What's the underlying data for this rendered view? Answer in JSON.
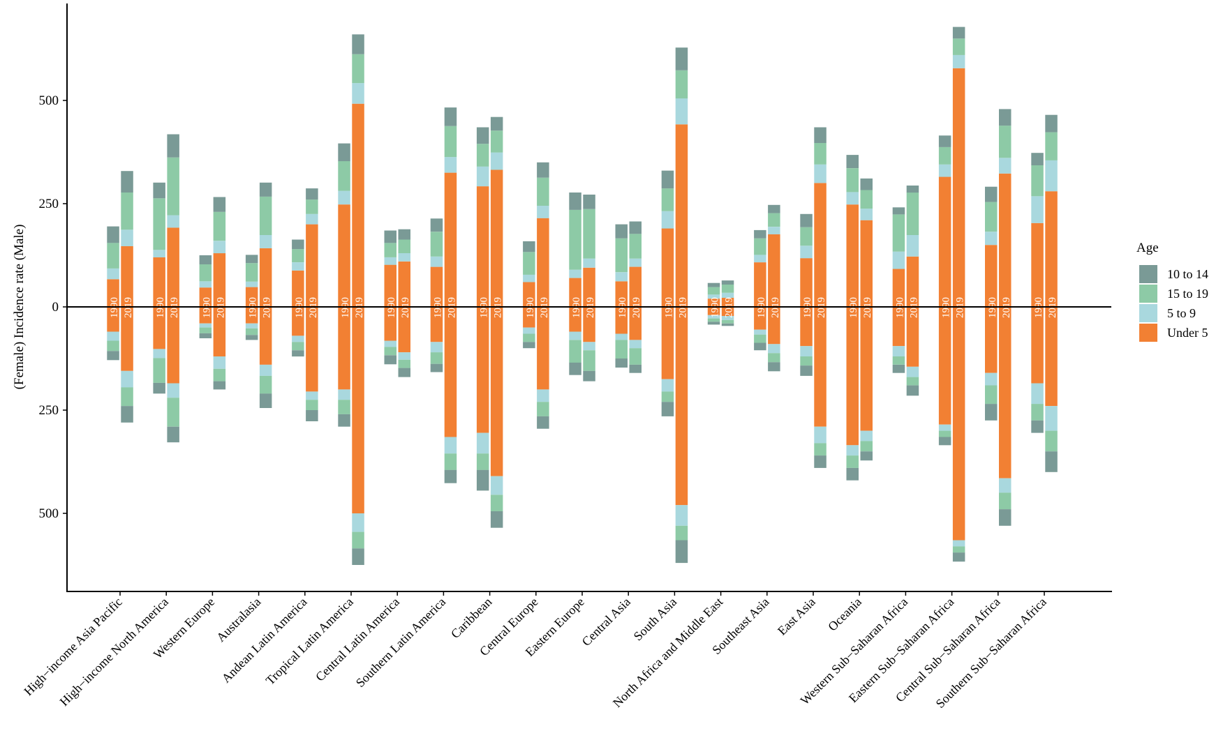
{
  "chart_data": {
    "type": "bar",
    "subtype": "diverging-stacked",
    "title": "",
    "xlabel": "",
    "ylabel": "(Female) Incidence rate (Male)",
    "ylim": [
      -650,
      740
    ],
    "yticks": [
      {
        "value": 500,
        "label": "500"
      },
      {
        "value": 250,
        "label": "250"
      },
      {
        "value": 0,
        "label": "0"
      },
      {
        "value": -250,
        "label": "250"
      },
      {
        "value": -500,
        "label": "500"
      }
    ],
    "bar_labels": [
      "1990",
      "2019"
    ],
    "stack_order": [
      "Under 5",
      "5 to 9",
      "15 to 19",
      "10 to 14"
    ],
    "legend": {
      "title": "Age",
      "position": "right",
      "entries": [
        {
          "label": "10 to 14",
          "color": "#7a9a96"
        },
        {
          "label": "15 to 19",
          "color": "#8dcaa6"
        },
        {
          "label": "5 to 9",
          "color": "#a9d8de"
        },
        {
          "label": "Under 5",
          "color": "#f28033"
        }
      ]
    },
    "regions": [
      {
        "name": "High−income Asia Pacific",
        "bars": [
          {
            "year": "1990",
            "male": {
              "Under 5": 67,
              "5 to 9": 26,
              "15 to 19": 62,
              "10 to 14": 40
            },
            "female": {
              "Under 5": 60,
              "5 to 9": 22,
              "15 to 19": 25,
              "10 to 14": 22
            }
          },
          {
            "year": "2019",
            "male": {
              "Under 5": 147,
              "5 to 9": 40,
              "15 to 19": 90,
              "10 to 14": 52
            },
            "female": {
              "Under 5": 155,
              "5 to 9": 40,
              "15 to 19": 45,
              "10 to 14": 40
            }
          }
        ]
      },
      {
        "name": "High−income North America",
        "bars": [
          {
            "year": "1990",
            "male": {
              "Under 5": 120,
              "5 to 9": 18,
              "15 to 19": 125,
              "10 to 14": 38
            },
            "female": {
              "Under 5": 102,
              "5 to 9": 22,
              "15 to 19": 60,
              "10 to 14": 26
            }
          },
          {
            "year": "2019",
            "male": {
              "Under 5": 192,
              "5 to 9": 30,
              "15 to 19": 140,
              "10 to 14": 56
            },
            "female": {
              "Under 5": 185,
              "5 to 9": 35,
              "15 to 19": 70,
              "10 to 14": 38
            }
          }
        ]
      },
      {
        "name": "Western Europe",
        "bars": [
          {
            "year": "1990",
            "male": {
              "Under 5": 47,
              "5 to 9": 15,
              "15 to 19": 41,
              "10 to 14": 22
            },
            "female": {
              "Under 5": 40,
              "5 to 9": 10,
              "15 to 19": 14,
              "10 to 14": 12
            }
          },
          {
            "year": "2019",
            "male": {
              "Under 5": 130,
              "5 to 9": 30,
              "15 to 19": 70,
              "10 to 14": 36
            },
            "female": {
              "Under 5": 120,
              "5 to 9": 30,
              "15 to 19": 30,
              "10 to 14": 20
            }
          }
        ]
      },
      {
        "name": "Australasia",
        "bars": [
          {
            "year": "1990",
            "male": {
              "Under 5": 48,
              "5 to 9": 13,
              "15 to 19": 45,
              "10 to 14": 20
            },
            "female": {
              "Under 5": 40,
              "5 to 9": 12,
              "15 to 19": 16,
              "10 to 14": 12
            }
          },
          {
            "year": "2019",
            "male": {
              "Under 5": 142,
              "5 to 9": 32,
              "15 to 19": 93,
              "10 to 14": 34
            },
            "female": {
              "Under 5": 140,
              "5 to 9": 27,
              "15 to 19": 43,
              "10 to 14": 35
            }
          }
        ]
      },
      {
        "name": "Andean Latin America",
        "bars": [
          {
            "year": "1990",
            "male": {
              "Under 5": 88,
              "5 to 9": 20,
              "15 to 19": 32,
              "10 to 14": 23
            },
            "female": {
              "Under 5": 70,
              "5 to 9": 15,
              "15 to 19": 20,
              "10 to 14": 15
            }
          },
          {
            "year": "2019",
            "male": {
              "Under 5": 200,
              "5 to 9": 25,
              "15 to 19": 35,
              "10 to 14": 27
            },
            "female": {
              "Under 5": 205,
              "5 to 9": 20,
              "15 to 19": 25,
              "10 to 14": 27
            }
          }
        ]
      },
      {
        "name": "Tropical Latin America",
        "bars": [
          {
            "year": "1990",
            "male": {
              "Under 5": 248,
              "5 to 9": 33,
              "15 to 19": 72,
              "10 to 14": 43
            },
            "female": {
              "Under 5": 200,
              "5 to 9": 25,
              "15 to 19": 35,
              "10 to 14": 30
            }
          },
          {
            "year": "2019",
            "male": {
              "Under 5": 492,
              "5 to 9": 50,
              "15 to 19": 70,
              "10 to 14": 48
            },
            "female": {
              "Under 5": 500,
              "5 to 9": 45,
              "15 to 19": 40,
              "10 to 14": 40
            }
          }
        ]
      },
      {
        "name": "Central Latin America",
        "bars": [
          {
            "year": "1990",
            "male": {
              "Under 5": 102,
              "5 to 9": 18,
              "15 to 19": 35,
              "10 to 14": 30
            },
            "female": {
              "Under 5": 82,
              "5 to 9": 15,
              "15 to 19": 20,
              "10 to 14": 22
            }
          },
          {
            "year": "2019",
            "male": {
              "Under 5": 110,
              "5 to 9": 20,
              "15 to 19": 33,
              "10 to 14": 25
            },
            "female": {
              "Under 5": 110,
              "5 to 9": 18,
              "15 to 19": 20,
              "10 to 14": 22
            }
          }
        ]
      },
      {
        "name": "Southern Latin America",
        "bars": [
          {
            "year": "1990",
            "male": {
              "Under 5": 97,
              "5 to 9": 25,
              "15 to 19": 60,
              "10 to 14": 32
            },
            "female": {
              "Under 5": 85,
              "5 to 9": 25,
              "15 to 19": 28,
              "10 to 14": 20
            }
          },
          {
            "year": "2019",
            "male": {
              "Under 5": 325,
              "5 to 9": 38,
              "15 to 19": 75,
              "10 to 14": 45
            },
            "female": {
              "Under 5": 315,
              "5 to 9": 40,
              "15 to 19": 40,
              "10 to 14": 32
            }
          }
        ]
      },
      {
        "name": "Caribbean",
        "bars": [
          {
            "year": "1990",
            "male": {
              "Under 5": 292,
              "5 to 9": 48,
              "15 to 19": 55,
              "10 to 14": 40
            },
            "female": {
              "Under 5": 305,
              "5 to 9": 50,
              "15 to 19": 40,
              "10 to 14": 50
            }
          },
          {
            "year": "2019",
            "male": {
              "Under 5": 332,
              "5 to 9": 42,
              "15 to 19": 53,
              "10 to 14": 33
            },
            "female": {
              "Under 5": 410,
              "5 to 9": 45,
              "15 to 19": 40,
              "10 to 14": 40
            }
          }
        ]
      },
      {
        "name": "Central Europe",
        "bars": [
          {
            "year": "1990",
            "male": {
              "Under 5": 60,
              "5 to 9": 18,
              "15 to 19": 55,
              "10 to 14": 26
            },
            "female": {
              "Under 5": 50,
              "5 to 9": 15,
              "15 to 19": 20,
              "10 to 14": 15
            }
          },
          {
            "year": "2019",
            "male": {
              "Under 5": 215,
              "5 to 9": 30,
              "15 to 19": 68,
              "10 to 14": 37
            },
            "female": {
              "Under 5": 200,
              "5 to 9": 30,
              "15 to 19": 35,
              "10 to 14": 30
            }
          }
        ]
      },
      {
        "name": "Eastern Europe",
        "bars": [
          {
            "year": "1990",
            "male": {
              "Under 5": 70,
              "5 to 9": 20,
              "15 to 19": 145,
              "10 to 14": 42
            },
            "female": {
              "Under 5": 60,
              "5 to 9": 20,
              "15 to 19": 55,
              "10 to 14": 30
            }
          },
          {
            "year": "2019",
            "male": {
              "Under 5": 95,
              "5 to 9": 22,
              "15 to 19": 120,
              "10 to 14": 35
            },
            "female": {
              "Under 5": 85,
              "5 to 9": 20,
              "15 to 19": 50,
              "10 to 14": 25
            }
          }
        ]
      },
      {
        "name": "Central Asia",
        "bars": [
          {
            "year": "1990",
            "male": {
              "Under 5": 62,
              "5 to 9": 22,
              "15 to 19": 82,
              "10 to 14": 34
            },
            "female": {
              "Under 5": 65,
              "5 to 9": 15,
              "15 to 19": 45,
              "10 to 14": 22
            }
          },
          {
            "year": "2019",
            "male": {
              "Under 5": 97,
              "5 to 9": 20,
              "15 to 19": 60,
              "10 to 14": 30
            },
            "female": {
              "Under 5": 80,
              "5 to 9": 20,
              "15 to 19": 40,
              "10 to 14": 20
            }
          }
        ]
      },
      {
        "name": "South Asia",
        "bars": [
          {
            "year": "1990",
            "male": {
              "Under 5": 190,
              "5 to 9": 42,
              "15 to 19": 55,
              "10 to 14": 43
            },
            "female": {
              "Under 5": 175,
              "5 to 9": 30,
              "15 to 19": 25,
              "10 to 14": 35
            }
          },
          {
            "year": "2019",
            "male": {
              "Under 5": 442,
              "5 to 9": 63,
              "15 to 19": 68,
              "10 to 14": 55
            },
            "female": {
              "Under 5": 480,
              "5 to 9": 50,
              "15 to 19": 35,
              "10 to 14": 55
            }
          }
        ]
      },
      {
        "name": "North Africa and Middle East",
        "bars": [
          {
            "year": "1990",
            "male": {
              "Under 5": 20,
              "5 to 9": 10,
              "15 to 19": 18,
              "10 to 14": 10
            },
            "female": {
              "Under 5": 20,
              "5 to 9": 8,
              "15 to 19": 8,
              "10 to 14": 7
            }
          },
          {
            "year": "2019",
            "male": {
              "Under 5": 22,
              "5 to 9": 12,
              "15 to 19": 20,
              "10 to 14": 10
            },
            "female": {
              "Under 5": 22,
              "5 to 9": 10,
              "15 to 19": 8,
              "10 to 14": 6
            }
          }
        ]
      },
      {
        "name": "Southeast Asia",
        "bars": [
          {
            "year": "1990",
            "male": {
              "Under 5": 108,
              "5 to 9": 18,
              "15 to 19": 40,
              "10 to 14": 20
            },
            "female": {
              "Under 5": 55,
              "5 to 9": 12,
              "15 to 19": 20,
              "10 to 14": 18
            }
          },
          {
            "year": "2019",
            "male": {
              "Under 5": 176,
              "5 to 9": 18,
              "15 to 19": 33,
              "10 to 14": 20
            },
            "female": {
              "Under 5": 90,
              "5 to 9": 22,
              "15 to 19": 22,
              "10 to 14": 22
            }
          }
        ]
      },
      {
        "name": "East Asia",
        "bars": [
          {
            "year": "1990",
            "male": {
              "Under 5": 118,
              "5 to 9": 30,
              "15 to 19": 45,
              "10 to 14": 32
            },
            "female": {
              "Under 5": 95,
              "5 to 9": 25,
              "15 to 19": 22,
              "10 to 14": 25
            }
          },
          {
            "year": "2019",
            "male": {
              "Under 5": 300,
              "5 to 9": 45,
              "15 to 19": 52,
              "10 to 14": 38
            },
            "female": {
              "Under 5": 290,
              "5 to 9": 40,
              "15 to 19": 30,
              "10 to 14": 30
            }
          }
        ]
      },
      {
        "name": "Oceania",
        "bars": [
          {
            "year": "1990",
            "male": {
              "Under 5": 248,
              "5 to 9": 30,
              "15 to 19": 58,
              "10 to 14": 32
            },
            "female": {
              "Under 5": 335,
              "5 to 9": 25,
              "15 to 19": 30,
              "10 to 14": 30
            }
          },
          {
            "year": "2019",
            "male": {
              "Under 5": 210,
              "5 to 9": 28,
              "15 to 19": 45,
              "10 to 14": 28
            },
            "female": {
              "Under 5": 300,
              "5 to 9": 25,
              "15 to 19": 25,
              "10 to 14": 22
            }
          }
        ]
      },
      {
        "name": "Western Sub−Saharan Africa",
        "bars": [
          {
            "year": "1990",
            "male": {
              "Under 5": 92,
              "5 to 9": 42,
              "15 to 19": 90,
              "10 to 14": 17
            },
            "female": {
              "Under 5": 95,
              "5 to 9": 25,
              "15 to 19": 20,
              "10 to 14": 20
            }
          },
          {
            "year": "2019",
            "male": {
              "Under 5": 122,
              "5 to 9": 52,
              "15 to 19": 103,
              "10 to 14": 17
            },
            "female": {
              "Under 5": 145,
              "5 to 9": 25,
              "15 to 19": 20,
              "10 to 14": 25
            }
          }
        ]
      },
      {
        "name": "Eastern Sub−Saharan Africa",
        "bars": [
          {
            "year": "1990",
            "male": {
              "Under 5": 315,
              "5 to 9": 30,
              "15 to 19": 42,
              "10 to 14": 28
            },
            "female": {
              "Under 5": 285,
              "5 to 9": 15,
              "15 to 19": 15,
              "10 to 14": 20
            }
          },
          {
            "year": "2019",
            "male": {
              "Under 5": 578,
              "5 to 9": 32,
              "15 to 19": 40,
              "10 to 14": 28
            },
            "female": {
              "Under 5": 565,
              "5 to 9": 15,
              "15 to 19": 15,
              "10 to 14": 22
            }
          }
        ]
      },
      {
        "name": "Central Sub−Saharan Africa",
        "bars": [
          {
            "year": "1990",
            "male": {
              "Under 5": 150,
              "5 to 9": 32,
              "15 to 19": 72,
              "10 to 14": 37
            },
            "female": {
              "Under 5": 160,
              "5 to 9": 30,
              "15 to 19": 45,
              "10 to 14": 40
            }
          },
          {
            "year": "2019",
            "male": {
              "Under 5": 323,
              "5 to 9": 38,
              "15 to 19": 78,
              "10 to 14": 40
            },
            "female": {
              "Under 5": 415,
              "5 to 9": 35,
              "15 to 19": 40,
              "10 to 14": 40
            }
          }
        ]
      },
      {
        "name": "Southern Sub−Saharan Africa",
        "bars": [
          {
            "year": "1990",
            "male": {
              "Under 5": 203,
              "5 to 9": 65,
              "15 to 19": 75,
              "10 to 14": 30
            },
            "female": {
              "Under 5": 185,
              "5 to 9": 50,
              "15 to 19": 40,
              "10 to 14": 30
            }
          },
          {
            "year": "2019",
            "male": {
              "Under 5": 280,
              "5 to 9": 75,
              "15 to 19": 68,
              "10 to 14": 42
            },
            "female": {
              "Under 5": 240,
              "5 to 9": 60,
              "15 to 19": 50,
              "10 to 14": 50
            }
          }
        ]
      }
    ]
  }
}
